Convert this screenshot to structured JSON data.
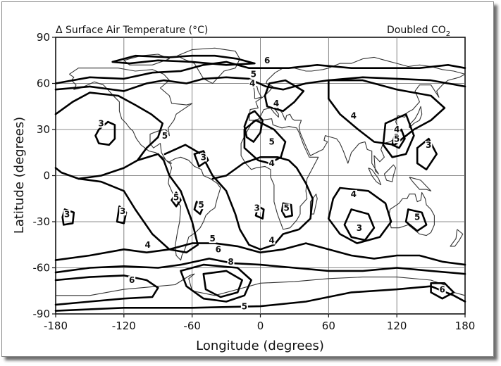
{
  "map": {
    "title": "Δ Surface Air Temperature (°C)",
    "scenario": {
      "main": "Doubled CO",
      "sub": "2"
    },
    "x_axis": {
      "label": "Longitude (degrees)",
      "ticks": [
        "-180",
        "-120",
        "-60",
        "0",
        "60",
        "120",
        "180"
      ],
      "range": [
        -180,
        180
      ]
    },
    "y_axis": {
      "label": "Latitude (degrees)",
      "ticks": [
        "90",
        "60",
        "30",
        "0",
        "-30",
        "-60",
        "-90"
      ],
      "range": [
        -90,
        90
      ]
    },
    "contour_levels": [
      3,
      4,
      5,
      6,
      8
    ],
    "contour_labels": [
      {
        "text": "6",
        "lon": 6,
        "lat": 74
      },
      {
        "text": "5",
        "lon": -6,
        "lat": 65
      },
      {
        "text": "4",
        "lon": -7,
        "lat": 59
      },
      {
        "text": "4",
        "lon": 14,
        "lat": 46
      },
      {
        "text": "4",
        "lon": 82,
        "lat": 38
      },
      {
        "text": "3",
        "lon": -140,
        "lat": 33
      },
      {
        "text": "5",
        "lon": -84,
        "lat": 25
      },
      {
        "text": "5",
        "lon": 10,
        "lat": 21
      },
      {
        "text": "4",
        "lon": 10,
        "lat": 7
      },
      {
        "text": "4",
        "lon": 120,
        "lat": 29
      },
      {
        "text": "5",
        "lon": 120,
        "lat": 23
      },
      {
        "text": "3",
        "lon": 148,
        "lat": 19
      },
      {
        "text": "3",
        "lon": -50,
        "lat": 11
      },
      {
        "text": "5",
        "lon": -74,
        "lat": -15
      },
      {
        "text": "5",
        "lon": -52,
        "lat": -20
      },
      {
        "text": "3",
        "lon": -3,
        "lat": -22
      },
      {
        "text": "5",
        "lon": 23,
        "lat": -22
      },
      {
        "text": "3",
        "lon": -170,
        "lat": -26
      },
      {
        "text": "3",
        "lon": -121,
        "lat": -24
      },
      {
        "text": "4",
        "lon": 82,
        "lat": -13
      },
      {
        "text": "3",
        "lon": 87,
        "lat": -35
      },
      {
        "text": "5",
        "lon": 138,
        "lat": -28
      },
      {
        "text": "4",
        "lon": 10,
        "lat": -43
      },
      {
        "text": "4",
        "lon": -99,
        "lat": -46
      },
      {
        "text": "5",
        "lon": -42,
        "lat": -42
      },
      {
        "text": "6",
        "lon": -37,
        "lat": -49
      },
      {
        "text": "8",
        "lon": -26,
        "lat": -57
      },
      {
        "text": "6",
        "lon": -113,
        "lat": -69
      },
      {
        "text": "5",
        "lon": -14,
        "lat": -86
      },
      {
        "text": "6",
        "lon": 160,
        "lat": -75
      }
    ]
  }
}
